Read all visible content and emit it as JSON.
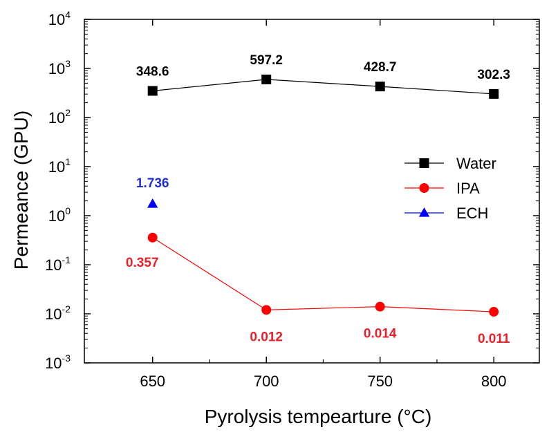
{
  "chart_data": {
    "type": "line",
    "xlabel": "Pyrolysis tempearture (°C)",
    "ylabel": "Permeance (GPU)",
    "x": [
      650,
      700,
      750,
      800
    ],
    "xlim": [
      620,
      820
    ],
    "x_ticks": [
      "650",
      "700",
      "750",
      "800"
    ],
    "y_scale": "log",
    "ylim": [
      0.001,
      10000
    ],
    "y_ticks": [
      {
        "value": 0.001,
        "base": "10",
        "exp": "-3"
      },
      {
        "value": 0.01,
        "base": "10",
        "exp": "-2"
      },
      {
        "value": 0.1,
        "base": "10",
        "exp": "-1"
      },
      {
        "value": 1,
        "base": "10",
        "exp": "0"
      },
      {
        "value": 10,
        "base": "10",
        "exp": "1"
      },
      {
        "value": 100,
        "base": "10",
        "exp": "2"
      },
      {
        "value": 1000,
        "base": "10",
        "exp": "3"
      },
      {
        "value": 10000,
        "base": "10",
        "exp": "4"
      }
    ],
    "grid": false,
    "legend_position": "right",
    "series": [
      {
        "name": "Water",
        "color": "#000000",
        "marker": "square",
        "x": [
          650,
          700,
          750,
          800
        ],
        "values": [
          348.6,
          597.2,
          428.7,
          302.3
        ],
        "labels": [
          "348.6",
          "597.2",
          "428.7",
          "302.3"
        ],
        "label_position": "above"
      },
      {
        "name": "IPA",
        "color": "#ff0000",
        "label_color": "#e8202a",
        "marker": "circle",
        "x": [
          650,
          700,
          750,
          800
        ],
        "values": [
          0.357,
          0.012,
          0.014,
          0.011
        ],
        "labels": [
          "0.357",
          "0.012",
          "0.014",
          "0.011"
        ],
        "label_position": "below"
      },
      {
        "name": "ECH",
        "color": "#0000ff",
        "label_color": "#2030d0",
        "marker": "triangle",
        "x": [
          650
        ],
        "values": [
          1.736
        ],
        "labels": [
          "1.736"
        ],
        "label_position": "above"
      }
    ]
  }
}
